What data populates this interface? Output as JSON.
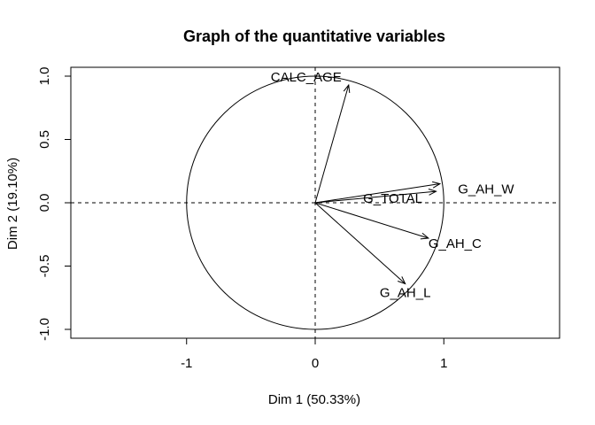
{
  "chart_data": {
    "type": "scatter",
    "title": "Graph of the quantitative variables",
    "xlabel": "Dim 1 (50.33%)",
    "ylabel": "Dim 2 (19.10%)",
    "xlim": [
      -1.9,
      1.9
    ],
    "ylim": [
      -1.07,
      1.07
    ],
    "xticks": [
      -1,
      0,
      1
    ],
    "xtick_labels": [
      "-1",
      "0",
      "1"
    ],
    "yticks": [
      -1.0,
      -0.5,
      0.0,
      0.5,
      1.0
    ],
    "ytick_labels": [
      "-1.0",
      "-0.5",
      "0.0",
      "0.5",
      "1.0"
    ],
    "grid": false,
    "correlation_circle": true,
    "reference_lines": {
      "x": 0,
      "y": 0,
      "style": "dashed"
    },
    "variables": [
      {
        "label": "CALC_AGE",
        "x": 0.26,
        "y": 0.93
      },
      {
        "label": "G_TOTAL",
        "x": 0.94,
        "y": 0.09
      },
      {
        "label": "G_AH_W",
        "x": 0.97,
        "y": 0.15
      },
      {
        "label": "G_AH_C",
        "x": 0.88,
        "y": -0.28
      },
      {
        "label": "G_AH_L",
        "x": 0.7,
        "y": -0.64
      }
    ],
    "colors": {
      "axes": "#000000",
      "arrows": "#000000",
      "text": "#000000"
    }
  }
}
